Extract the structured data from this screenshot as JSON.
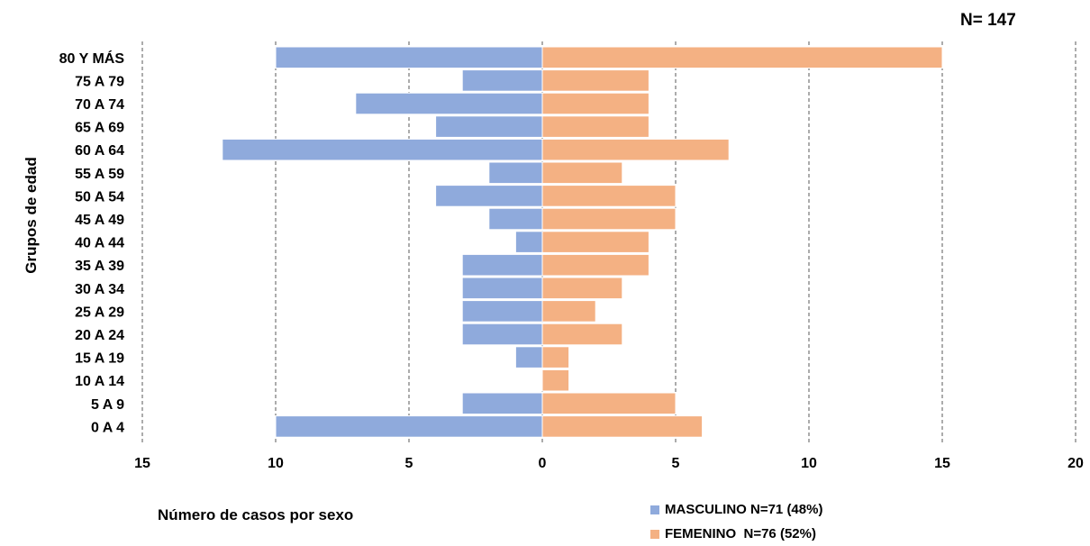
{
  "chart_data": {
    "type": "bar",
    "orientation": "horizontal",
    "layout": "population-pyramid",
    "annotation": "N= 147",
    "xlabel": "Número de casos por sexo",
    "ylabel": "Grupos de edad",
    "xlim": [
      -15,
      20
    ],
    "x_ticks": [
      -15,
      -10,
      -5,
      0,
      5,
      10,
      15,
      20
    ],
    "x_tick_labels": [
      "15",
      "10",
      "5",
      "0",
      "5",
      "10",
      "15",
      "20"
    ],
    "grid": "vertical dashed",
    "legend_position": "bottom-right",
    "categories": [
      "80 Y MÁS",
      "75 A 79",
      "70 A 74",
      "65 A 69",
      "60 A 64",
      "55 A 59",
      "50 A 54",
      "45 A 49",
      "40 A 44",
      "35 A 39",
      "30 A 34",
      "25 A 29",
      "20 A 24",
      "15 A 19",
      "10 A 14",
      "5 A 9",
      "0 A 4"
    ],
    "series": [
      {
        "name": "MASCULINO N=71 (48%)",
        "color": "#8faadc",
        "side": "left",
        "values": [
          10,
          3,
          7,
          4,
          12,
          2,
          4,
          2,
          1,
          3,
          3,
          3,
          3,
          1,
          0,
          3,
          10
        ]
      },
      {
        "name": "FEMENINO  N=76 (52%)",
        "color": "#f4b183",
        "side": "right",
        "values": [
          15,
          4,
          4,
          4,
          7,
          3,
          5,
          5,
          4,
          4,
          3,
          2,
          3,
          1,
          1,
          5,
          6
        ]
      }
    ]
  }
}
